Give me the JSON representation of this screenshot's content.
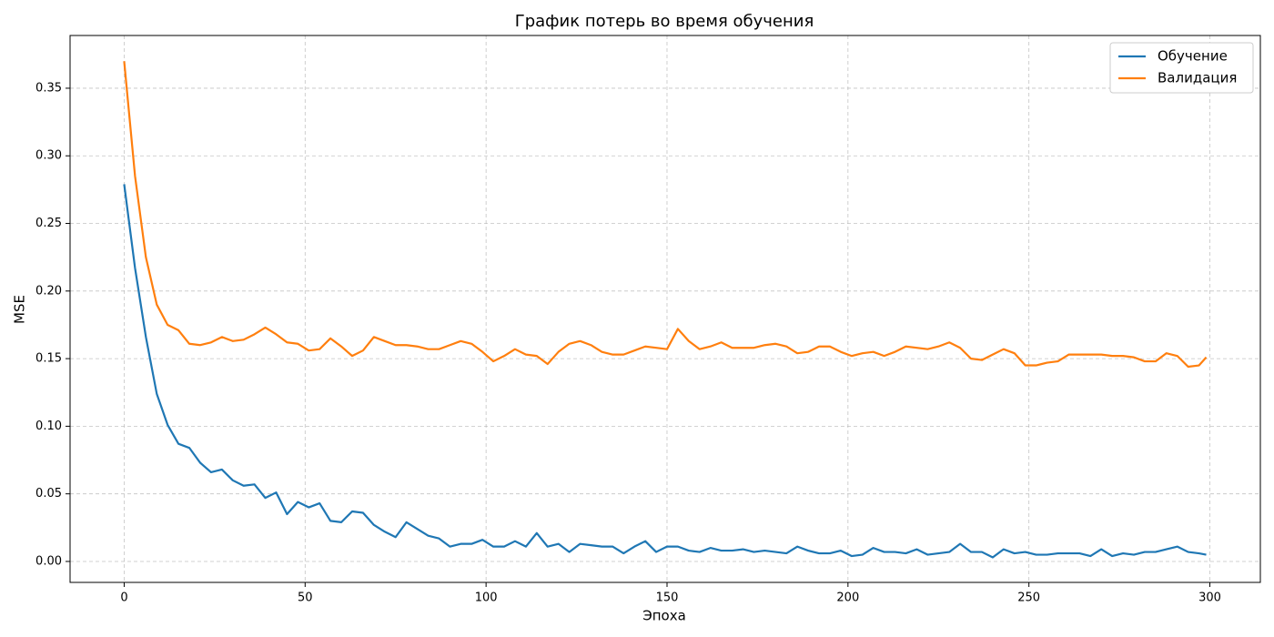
{
  "chart_data": {
    "type": "line",
    "title": "График потерь во время обучения",
    "x_label": "Эпоха",
    "y_label": "MSE",
    "x": [
      0,
      3,
      6,
      9,
      12,
      15,
      18,
      21,
      24,
      27,
      30,
      33,
      36,
      39,
      42,
      45,
      48,
      51,
      54,
      57,
      60,
      63,
      66,
      69,
      72,
      75,
      78,
      81,
      84,
      87,
      90,
      93,
      96,
      99,
      102,
      105,
      108,
      111,
      114,
      117,
      120,
      123,
      126,
      129,
      132,
      135,
      138,
      141,
      144,
      147,
      150,
      153,
      156,
      159,
      162,
      165,
      168,
      171,
      174,
      177,
      180,
      183,
      186,
      189,
      192,
      195,
      198,
      201,
      204,
      207,
      210,
      213,
      216,
      219,
      222,
      225,
      228,
      231,
      234,
      237,
      240,
      243,
      246,
      249,
      252,
      255,
      258,
      261,
      264,
      267,
      270,
      273,
      276,
      279,
      282,
      285,
      288,
      291,
      294,
      297,
      299
    ],
    "series": [
      {
        "name": "Обучение",
        "color": "#1f77b4",
        "values": [
          0.279,
          0.217,
          0.166,
          0.124,
          0.101,
          0.087,
          0.084,
          0.073,
          0.066,
          0.068,
          0.06,
          0.056,
          0.057,
          0.047,
          0.051,
          0.035,
          0.044,
          0.04,
          0.043,
          0.03,
          0.029,
          0.037,
          0.036,
          0.027,
          0.022,
          0.018,
          0.029,
          0.024,
          0.019,
          0.017,
          0.011,
          0.013,
          0.013,
          0.016,
          0.011,
          0.011,
          0.015,
          0.011,
          0.021,
          0.011,
          0.013,
          0.007,
          0.013,
          0.012,
          0.011,
          0.011,
          0.006,
          0.011,
          0.015,
          0.007,
          0.011,
          0.011,
          0.008,
          0.007,
          0.01,
          0.008,
          0.008,
          0.009,
          0.007,
          0.008,
          0.007,
          0.006,
          0.011,
          0.008,
          0.006,
          0.006,
          0.008,
          0.004,
          0.005,
          0.01,
          0.007,
          0.007,
          0.006,
          0.009,
          0.005,
          0.006,
          0.007,
          0.013,
          0.007,
          0.007,
          0.003,
          0.009,
          0.006,
          0.007,
          0.005,
          0.005,
          0.006,
          0.006,
          0.006,
          0.004,
          0.009,
          0.004,
          0.006,
          0.005,
          0.007,
          0.007,
          0.009,
          0.011,
          0.007,
          0.006,
          0.005
        ]
      },
      {
        "name": "Валидация",
        "color": "#ff7f0e",
        "values": [
          0.37,
          0.285,
          0.225,
          0.19,
          0.175,
          0.171,
          0.161,
          0.16,
          0.162,
          0.166,
          0.163,
          0.164,
          0.168,
          0.173,
          0.168,
          0.162,
          0.161,
          0.156,
          0.157,
          0.165,
          0.159,
          0.152,
          0.156,
          0.166,
          0.163,
          0.16,
          0.16,
          0.159,
          0.157,
          0.157,
          0.16,
          0.163,
          0.161,
          0.155,
          0.148,
          0.152,
          0.157,
          0.153,
          0.152,
          0.146,
          0.155,
          0.161,
          0.163,
          0.16,
          0.155,
          0.153,
          0.153,
          0.156,
          0.159,
          0.158,
          0.157,
          0.172,
          0.163,
          0.157,
          0.159,
          0.162,
          0.158,
          0.158,
          0.158,
          0.16,
          0.161,
          0.159,
          0.154,
          0.155,
          0.159,
          0.159,
          0.155,
          0.152,
          0.154,
          0.155,
          0.152,
          0.155,
          0.159,
          0.158,
          0.157,
          0.159,
          0.162,
          0.158,
          0.15,
          0.149,
          0.153,
          0.157,
          0.154,
          0.145,
          0.145,
          0.147,
          0.148,
          0.153,
          0.153,
          0.153,
          0.153,
          0.152,
          0.152,
          0.151,
          0.148,
          0.148,
          0.154,
          0.152,
          0.144,
          0.145,
          0.151
        ]
      }
    ],
    "xlim": [
      -14.95,
      313.95
    ],
    "xticks": [
      0,
      50,
      100,
      150,
      200,
      250,
      300
    ],
    "ylim": [
      -0.0155,
      0.389
    ],
    "yticks": [
      {
        "value": 0,
        "label": "0.00"
      },
      {
        "value": 0.05,
        "label": "0.05"
      },
      {
        "value": 0.1,
        "label": "0.10"
      },
      {
        "value": 0.15,
        "label": "0.15"
      },
      {
        "value": 0.2,
        "label": "0.20"
      },
      {
        "value": 0.25,
        "label": "0.25"
      },
      {
        "value": 0.3,
        "label": "0.30"
      },
      {
        "value": 0.35,
        "label": "0.35"
      }
    ],
    "grid": true,
    "legend": "upper right"
  }
}
